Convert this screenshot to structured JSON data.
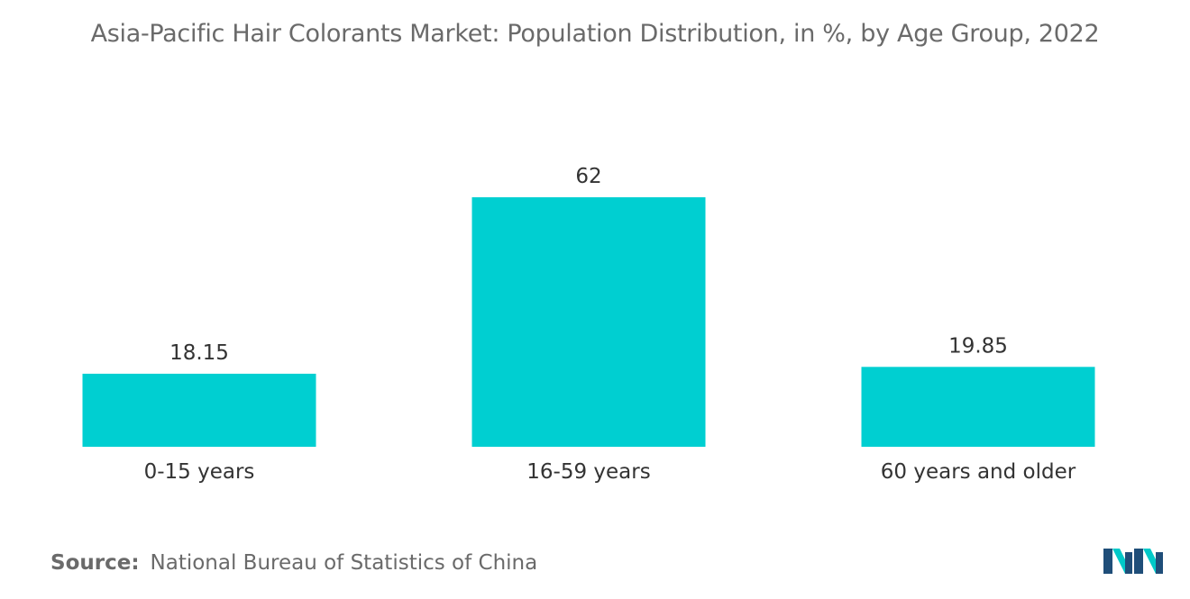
{
  "title": "Asia-Pacific Hair Colorants Market: Population Distribution, in %, by Age Group, 2022",
  "source": {
    "label": "Source:",
    "text": "National Bureau of Statistics of China"
  },
  "logo": {
    "icon": "mordor-intelligence-logo",
    "colors": [
      "#1f4e79",
      "#00c9c9"
    ]
  },
  "colors": {
    "bar": "#00cfd1",
    "text": "#333333",
    "title": "#6a6a6a"
  },
  "chart_data": {
    "type": "bar",
    "title": "Asia-Pacific Hair Colorants Market: Population Distribution, in %, by Age Group, 2022",
    "categories": [
      "0-15 years",
      "16-59 years",
      "60 years and older"
    ],
    "values": [
      18.15,
      62,
      19.85
    ],
    "value_labels": [
      "18.15",
      "62",
      "19.85"
    ],
    "xlabel": "",
    "ylabel": "",
    "ylim": [
      0,
      62
    ],
    "grid": false,
    "legend": "none",
    "y_axis_visible": false
  }
}
